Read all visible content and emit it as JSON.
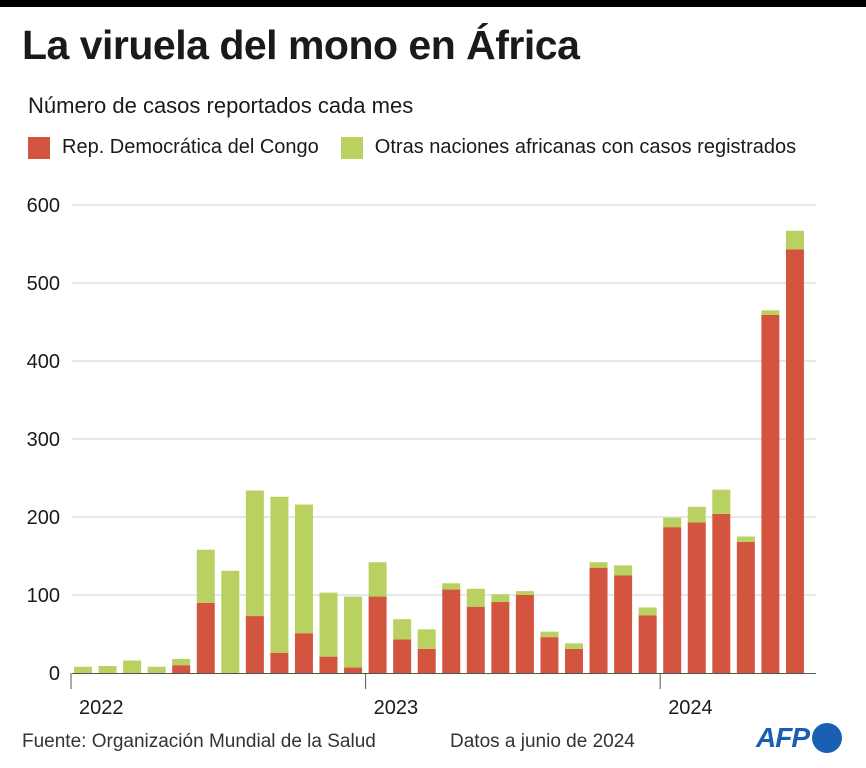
{
  "header": {
    "title": "La viruela del mono en África",
    "subtitle": "Número de casos reportados cada mes"
  },
  "footer": {
    "source": "Fuente: Organización Mundial de la Salud",
    "date_note": "Datos a junio de 2024",
    "logo": "AFP"
  },
  "colors": {
    "drc": "#d4553f",
    "others": "#b9d160",
    "grid": "#cfcfcf",
    "logo": "#1a5fb4"
  },
  "chart_data": {
    "type": "bar",
    "stacked": true,
    "title": "La viruela del mono en África",
    "subtitle": "Número de casos reportados cada mes",
    "ylim": [
      0,
      600
    ],
    "yticks": [
      0,
      100,
      200,
      300,
      400,
      500,
      600
    ],
    "x_tick_labels": [
      {
        "label": "2022",
        "index": 0
      },
      {
        "label": "2023",
        "index": 12
      },
      {
        "label": "2024",
        "index": 24
      }
    ],
    "grid": true,
    "legend_position": "top",
    "series": [
      {
        "name": "Rep. Democrática del Congo",
        "values": [
          0,
          0,
          0,
          0,
          10,
          90,
          0,
          73,
          26,
          51,
          21,
          7,
          98,
          43,
          31,
          107,
          85,
          91,
          100,
          46,
          31,
          135,
          125,
          74,
          187,
          193,
          204,
          168,
          459,
          543
        ]
      },
      {
        "name": "Otras naciones africanas con casos registrados",
        "values": [
          8,
          9,
          16,
          8,
          8,
          68,
          131,
          161,
          200,
          165,
          82,
          91,
          44,
          26,
          25,
          8,
          23,
          10,
          5,
          7,
          7,
          7,
          13,
          10,
          12,
          20,
          31,
          7,
          6,
          24
        ]
      }
    ]
  }
}
